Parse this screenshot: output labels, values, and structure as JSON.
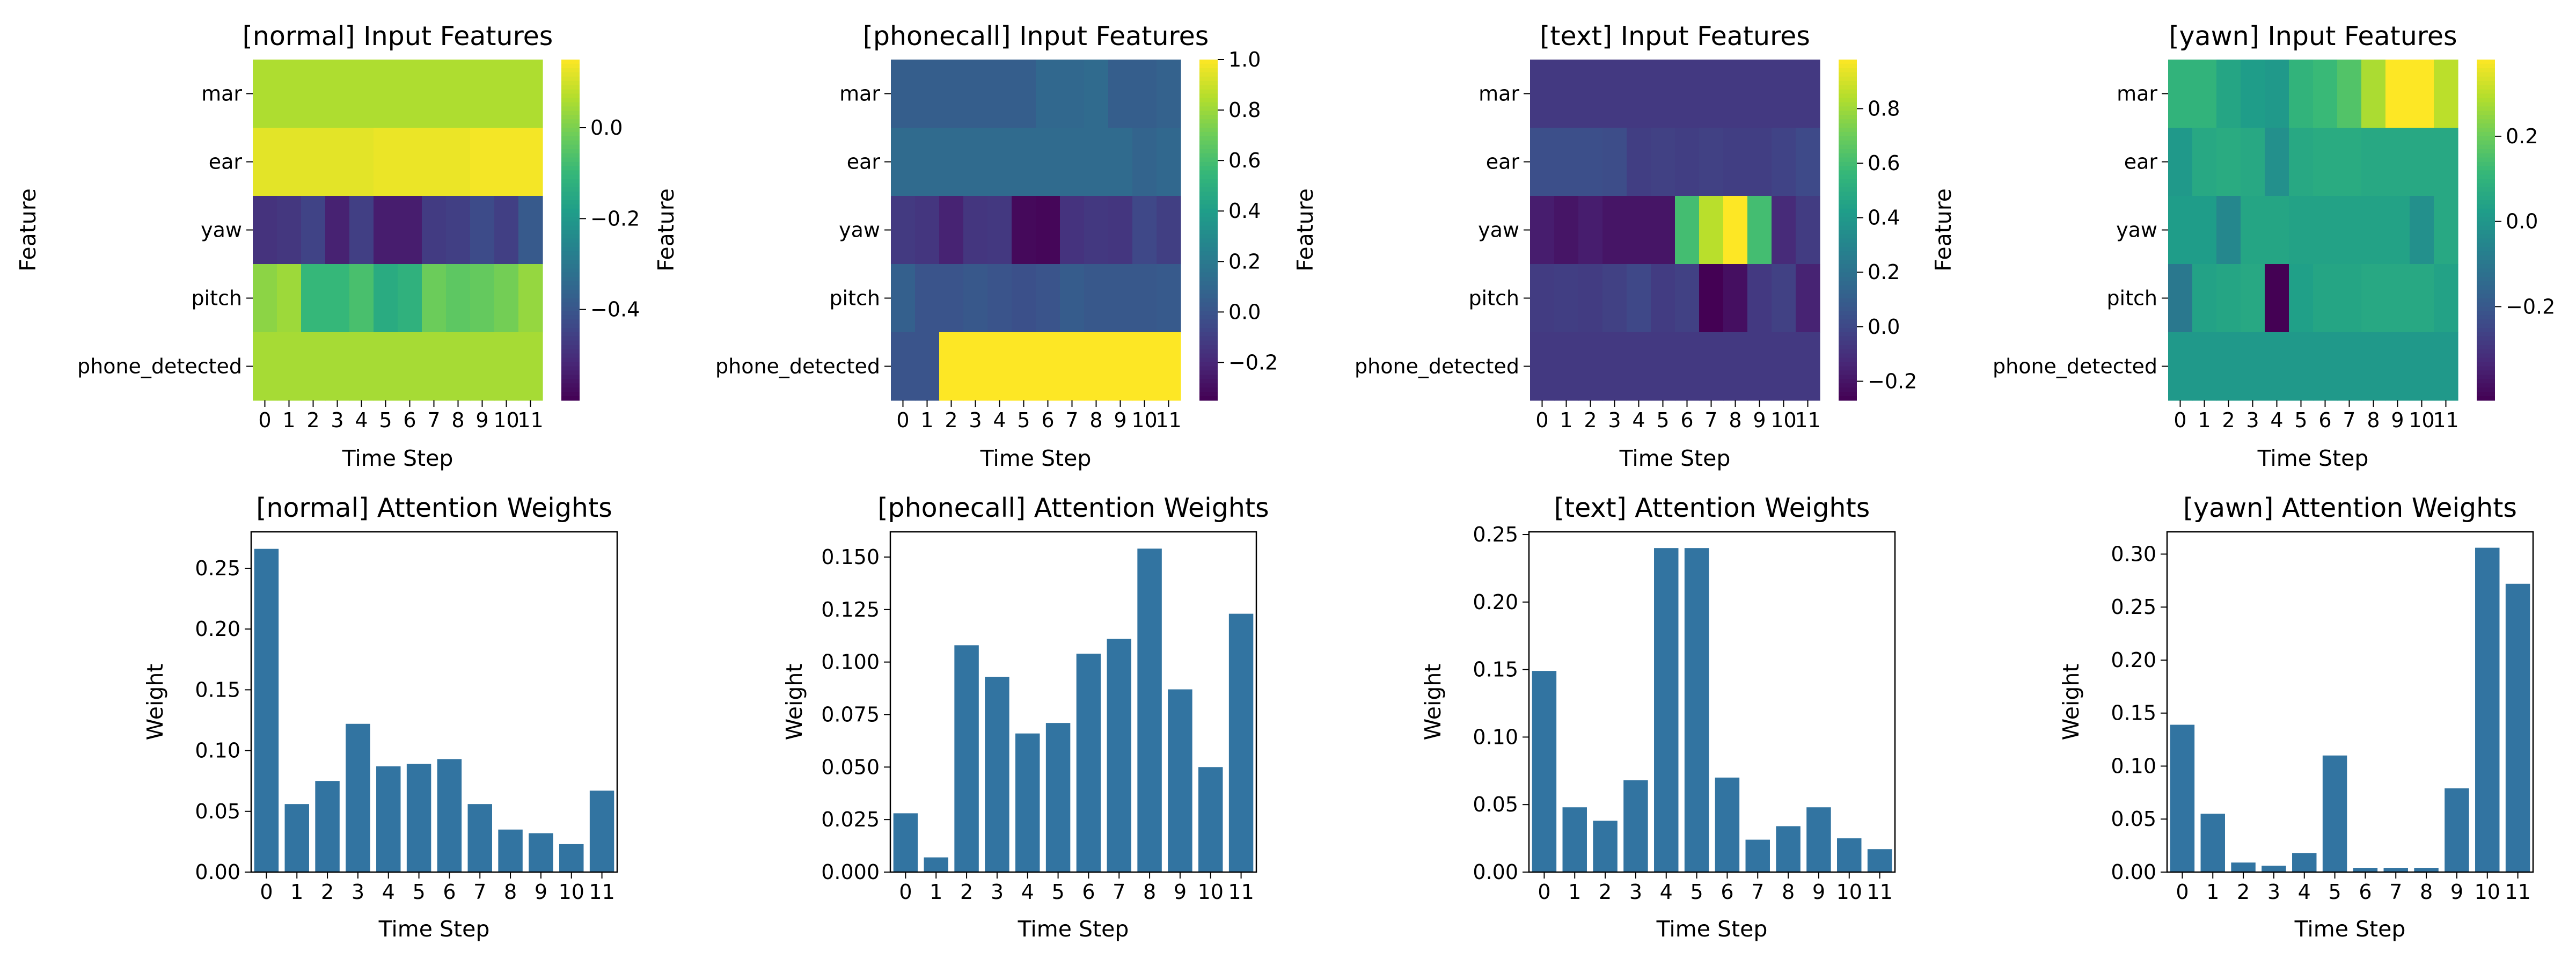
{
  "chart_data": [
    {
      "type": "heatmap",
      "title": "[normal] Input Features",
      "xlabel": "Time Step",
      "ylabel": "Feature",
      "x": [
        "0",
        "1",
        "2",
        "3",
        "4",
        "5",
        "6",
        "7",
        "8",
        "9",
        "10",
        "11"
      ],
      "y": [
        "mar",
        "ear",
        "yaw",
        "pitch",
        "phone_detected"
      ],
      "z": [
        [
          0.06,
          0.06,
          0.06,
          0.06,
          0.06,
          0.06,
          0.06,
          0.06,
          0.06,
          0.06,
          0.06,
          0.06
        ],
        [
          0.12,
          0.12,
          0.12,
          0.12,
          0.12,
          0.13,
          0.13,
          0.13,
          0.13,
          0.14,
          0.14,
          0.14
        ],
        [
          -0.49,
          -0.48,
          -0.45,
          -0.53,
          -0.46,
          -0.54,
          -0.54,
          -0.47,
          -0.46,
          -0.43,
          -0.46,
          -0.39
        ],
        [
          0.02,
          0.04,
          -0.1,
          -0.1,
          -0.07,
          -0.14,
          -0.12,
          -0.02,
          -0.04,
          -0.03,
          -0.01,
          0.03
        ],
        [
          0.05,
          0.05,
          0.05,
          0.05,
          0.05,
          0.05,
          0.05,
          0.05,
          0.05,
          0.05,
          0.05,
          0.05
        ]
      ],
      "colorbar": {
        "min": -0.6,
        "max": 0.15,
        "ticks": [
          0.0,
          -0.2,
          -0.4
        ],
        "tick_labels": [
          "0.0",
          "−0.2",
          "−0.4"
        ]
      },
      "colormap": "viridis"
    },
    {
      "type": "heatmap",
      "title": "[phonecall] Input Features",
      "xlabel": "Time Step",
      "ylabel": "Feature",
      "x": [
        "0",
        "1",
        "2",
        "3",
        "4",
        "5",
        "6",
        "7",
        "8",
        "9",
        "10",
        "11"
      ],
      "y": [
        "mar",
        "ear",
        "yaw",
        "pitch",
        "phone_detected"
      ],
      "z": [
        [
          0.05,
          0.05,
          0.05,
          0.05,
          0.05,
          0.05,
          0.1,
          0.1,
          0.12,
          0.05,
          0.05,
          0.07
        ],
        [
          0.12,
          0.12,
          0.12,
          0.12,
          0.12,
          0.12,
          0.12,
          0.12,
          0.12,
          0.12,
          0.08,
          0.1
        ],
        [
          -0.12,
          -0.14,
          -0.22,
          -0.14,
          -0.13,
          -0.32,
          -0.33,
          -0.15,
          -0.13,
          -0.14,
          -0.06,
          -0.1
        ],
        [
          0.06,
          0.0,
          0.0,
          0.02,
          0.0,
          -0.02,
          0.0,
          0.04,
          0.02,
          0.02,
          0.02,
          0.03
        ],
        [
          0.0,
          0.0,
          1.0,
          1.0,
          1.0,
          1.0,
          1.0,
          1.0,
          1.0,
          1.0,
          1.0,
          1.0
        ]
      ],
      "colorbar": {
        "min": -0.35,
        "max": 1.0,
        "ticks": [
          1.0,
          0.8,
          0.6,
          0.4,
          0.2,
          0.0,
          -0.2
        ],
        "tick_labels": [
          "1.0",
          "0.8",
          "0.6",
          "0.4",
          "0.2",
          "0.0",
          "−0.2"
        ]
      },
      "colormap": "viridis"
    },
    {
      "type": "heatmap",
      "title": "[text] Input Features",
      "xlabel": "Time Step",
      "ylabel": "Feature",
      "x": [
        "0",
        "1",
        "2",
        "3",
        "4",
        "5",
        "6",
        "7",
        "8",
        "9",
        "10",
        "11"
      ],
      "y": [
        "mar",
        "ear",
        "yaw",
        "pitch",
        "phone_detected"
      ],
      "z": [
        [
          -0.06,
          -0.06,
          -0.06,
          -0.06,
          -0.06,
          -0.06,
          -0.06,
          -0.06,
          -0.06,
          -0.06,
          -0.06,
          -0.06
        ],
        [
          0.03,
          0.03,
          0.03,
          0.02,
          -0.04,
          -0.03,
          -0.04,
          -0.03,
          -0.04,
          -0.04,
          -0.02,
          0.01
        ],
        [
          -0.17,
          -0.2,
          -0.17,
          -0.2,
          -0.2,
          -0.2,
          0.6,
          0.85,
          0.98,
          0.6,
          -0.12,
          -0.05
        ],
        [
          -0.05,
          -0.04,
          -0.05,
          -0.03,
          0.0,
          -0.05,
          -0.03,
          -0.27,
          -0.22,
          -0.06,
          -0.03,
          -0.15
        ],
        [
          -0.06,
          -0.06,
          -0.06,
          -0.06,
          -0.06,
          -0.06,
          -0.06,
          -0.06,
          -0.06,
          -0.06,
          -0.06,
          -0.06
        ]
      ],
      "colorbar": {
        "min": -0.27,
        "max": 0.98,
        "ticks": [
          0.8,
          0.6,
          0.4,
          0.2,
          0.0,
          -0.2
        ],
        "tick_labels": [
          "0.8",
          "0.6",
          "0.4",
          "0.2",
          "0.0",
          "−0.2"
        ]
      },
      "colormap": "viridis"
    },
    {
      "type": "heatmap",
      "title": "[yawn] Input Features",
      "xlabel": "Time Step",
      "ylabel": "Feature",
      "x": [
        "0",
        "1",
        "2",
        "3",
        "4",
        "5",
        "6",
        "7",
        "8",
        "9",
        "10",
        "11"
      ],
      "y": [
        "mar",
        "ear",
        "yaw",
        "pitch",
        "phone_detected"
      ],
      "z": [
        [
          0.1,
          0.1,
          0.05,
          0.02,
          0.01,
          0.1,
          0.12,
          0.16,
          0.28,
          0.38,
          0.38,
          0.3
        ],
        [
          0.01,
          0.06,
          0.07,
          0.06,
          -0.02,
          0.06,
          0.07,
          0.07,
          0.06,
          0.06,
          0.06,
          0.06
        ],
        [
          0.02,
          0.02,
          -0.05,
          0.05,
          0.05,
          0.04,
          0.04,
          0.04,
          0.04,
          0.04,
          -0.02,
          0.06
        ],
        [
          -0.1,
          0.04,
          0.05,
          0.06,
          -0.42,
          0.03,
          0.05,
          0.05,
          0.06,
          0.06,
          0.06,
          0.04
        ],
        [
          0.01,
          0.01,
          0.01,
          0.01,
          0.01,
          0.01,
          0.01,
          0.01,
          0.01,
          0.01,
          0.01,
          0.01
        ]
      ],
      "colorbar": {
        "min": -0.42,
        "max": 0.38,
        "ticks": [
          0.2,
          0.0,
          -0.2
        ],
        "tick_labels": [
          "0.2",
          "0.0",
          "−0.2"
        ]
      },
      "colormap": "viridis"
    },
    {
      "type": "bar",
      "title": "[normal] Attention Weights",
      "xlabel": "Time Step",
      "ylabel": "Weight",
      "categories": [
        "0",
        "1",
        "2",
        "3",
        "4",
        "5",
        "6",
        "7",
        "8",
        "9",
        "10",
        "11"
      ],
      "values": [
        0.266,
        0.056,
        0.075,
        0.122,
        0.087,
        0.089,
        0.093,
        0.056,
        0.035,
        0.032,
        0.023,
        0.067
      ],
      "ylim": [
        0,
        0.28
      ],
      "yticks": [
        0.0,
        0.05,
        0.1,
        0.15,
        0.2,
        0.25
      ],
      "ytick_labels": [
        "0.00",
        "0.05",
        "0.10",
        "0.15",
        "0.20",
        "0.25"
      ],
      "color": "#3274a1"
    },
    {
      "type": "bar",
      "title": "[phonecall] Attention Weights",
      "xlabel": "Time Step",
      "ylabel": "Weight",
      "categories": [
        "0",
        "1",
        "2",
        "3",
        "4",
        "5",
        "6",
        "7",
        "8",
        "9",
        "10",
        "11"
      ],
      "values": [
        0.028,
        0.007,
        0.108,
        0.093,
        0.066,
        0.071,
        0.104,
        0.111,
        0.154,
        0.087,
        0.05,
        0.123
      ],
      "ylim": [
        0,
        0.162
      ],
      "yticks": [
        0.0,
        0.025,
        0.05,
        0.075,
        0.1,
        0.125,
        0.15
      ],
      "ytick_labels": [
        "0.000",
        "0.025",
        "0.050",
        "0.075",
        "0.100",
        "0.125",
        "0.150"
      ],
      "color": "#3274a1"
    },
    {
      "type": "bar",
      "title": "[text] Attention Weights",
      "xlabel": "Time Step",
      "ylabel": "Weight",
      "categories": [
        "0",
        "1",
        "2",
        "3",
        "4",
        "5",
        "6",
        "7",
        "8",
        "9",
        "10",
        "11"
      ],
      "values": [
        0.149,
        0.048,
        0.038,
        0.068,
        0.24,
        0.24,
        0.07,
        0.024,
        0.034,
        0.048,
        0.025,
        0.017
      ],
      "ylim": [
        0,
        0.252
      ],
      "yticks": [
        0.0,
        0.05,
        0.1,
        0.15,
        0.2,
        0.25
      ],
      "ytick_labels": [
        "0.00",
        "0.05",
        "0.10",
        "0.15",
        "0.20",
        "0.25"
      ],
      "color": "#3274a1"
    },
    {
      "type": "bar",
      "title": "[yawn] Attention Weights",
      "xlabel": "Time Step",
      "ylabel": "Weight",
      "categories": [
        "0",
        "1",
        "2",
        "3",
        "4",
        "5",
        "6",
        "7",
        "8",
        "9",
        "10",
        "11"
      ],
      "values": [
        0.139,
        0.055,
        0.009,
        0.006,
        0.018,
        0.11,
        0.004,
        0.004,
        0.004,
        0.079,
        0.306,
        0.272
      ],
      "ylim": [
        0,
        0.321
      ],
      "yticks": [
        0.0,
        0.05,
        0.1,
        0.15,
        0.2,
        0.25,
        0.3
      ],
      "ytick_labels": [
        "0.00",
        "0.05",
        "0.10",
        "0.15",
        "0.20",
        "0.25",
        "0.30"
      ],
      "color": "#3274a1"
    }
  ]
}
